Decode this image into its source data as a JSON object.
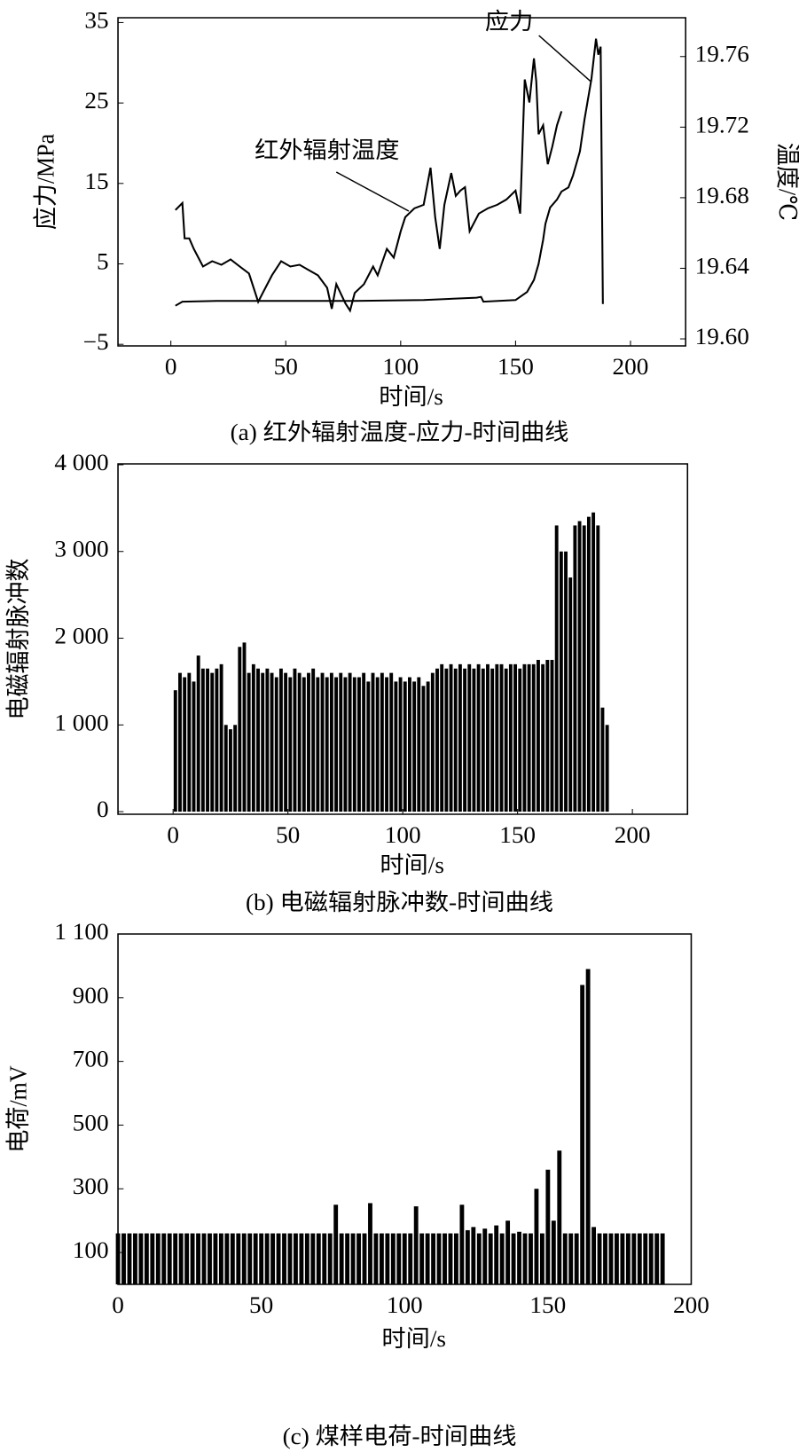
{
  "chart_data": [
    {
      "type": "line",
      "title": "(a) 红外辐射温度-应力-时间曲线",
      "xlabel": "时间/s",
      "ylabel": "应力/MPa",
      "y2label": "温度/℃",
      "xlim": [
        -23,
        224
      ],
      "xticks": [
        0,
        50,
        100,
        150,
        200
      ],
      "ylim": [
        -5.2,
        35.6
      ],
      "yticks": [
        {
          "value": -5,
          "label": "−5"
        },
        5,
        15,
        25,
        35
      ],
      "y2lim": [
        19.596,
        19.782
      ],
      "y2ticks": [
        {
          "value": 19.6,
          "label": "19.60"
        },
        {
          "value": 19.64,
          "label": "19.64"
        },
        {
          "value": 19.68,
          "label": "19.68"
        },
        {
          "value": 19.72,
          "label": "19.72"
        },
        {
          "value": 19.76,
          "label": "19.76"
        }
      ],
      "series": [
        {
          "name": "应力",
          "color": "#000000",
          "x": [
            2,
            5,
            20,
            50,
            80,
            110,
            133,
            135,
            136,
            150,
            155,
            158,
            160,
            162,
            163,
            165,
            168,
            170,
            173,
            175,
            178,
            180,
            183,
            185,
            186,
            187,
            188
          ],
          "values": [
            -0.2,
            0.3,
            0.4,
            0.4,
            0.4,
            0.5,
            0.8,
            0.9,
            0.3,
            0.5,
            1.5,
            3,
            5,
            8,
            10,
            12,
            13,
            14,
            14.5,
            16,
            19,
            23,
            28,
            33,
            31,
            32,
            0
          ]
        },
        {
          "name": "红外辐射温度",
          "color": "#000000",
          "axis": "y2",
          "x": [
            2,
            5,
            6,
            8,
            10,
            14,
            18,
            22,
            26,
            30,
            34,
            38,
            40,
            44,
            48,
            52,
            56,
            60,
            64,
            68,
            70,
            72,
            76,
            78,
            80,
            84,
            88,
            90,
            94,
            97,
            100,
            102,
            106,
            110,
            113,
            115,
            117,
            119,
            122,
            124,
            126,
            128,
            130,
            134,
            138,
            142,
            146,
            150,
            152,
            154,
            156,
            158,
            159,
            160,
            162,
            164,
            166,
            168,
            170
          ],
          "values": [
            19.673,
            19.677,
            19.657,
            19.657,
            19.651,
            19.641,
            19.644,
            19.642,
            19.645,
            19.641,
            19.637,
            19.621,
            19.626,
            19.636,
            19.644,
            19.641,
            19.642,
            19.639,
            19.636,
            19.629,
            19.617,
            19.631,
            19.62,
            19.616,
            19.626,
            19.631,
            19.641,
            19.636,
            19.651,
            19.646,
            19.661,
            19.669,
            19.674,
            19.676,
            19.697,
            19.669,
            19.651,
            19.676,
            19.694,
            19.681,
            19.684,
            19.686,
            19.661,
            19.671,
            19.674,
            19.676,
            19.679,
            19.684,
            19.671,
            19.747,
            19.734,
            19.759,
            19.746,
            19.716,
            19.721,
            19.699,
            19.709,
            19.721,
            19.729
          ]
        }
      ]
    },
    {
      "type": "bar",
      "title": "(b) 电磁辐射脉冲数-时间曲线",
      "xlabel": "时间/s",
      "ylabel": "电磁辐射脉冲数",
      "color": "#000000",
      "xlim": [
        -24,
        224
      ],
      "xticks": [
        0,
        50,
        100,
        150,
        200
      ],
      "ylim": [
        -30,
        4010
      ],
      "yticks": [
        0,
        {
          "value": 1000,
          "label": "1 000"
        },
        {
          "value": 2000,
          "label": "2 000"
        },
        {
          "value": 3000,
          "label": "3 000"
        },
        {
          "value": 4000,
          "label": "4 000"
        }
      ],
      "x": [
        1,
        3,
        5,
        7,
        9,
        11,
        13,
        15,
        17,
        19,
        21,
        23,
        25,
        27,
        29,
        31,
        33,
        35,
        37,
        39,
        41,
        43,
        45,
        47,
        49,
        51,
        53,
        55,
        57,
        59,
        61,
        63,
        65,
        67,
        69,
        71,
        73,
        75,
        77,
        79,
        81,
        83,
        85,
        87,
        89,
        91,
        93,
        95,
        97,
        99,
        101,
        103,
        105,
        107,
        109,
        111,
        113,
        115,
        117,
        119,
        121,
        123,
        125,
        127,
        129,
        131,
        133,
        135,
        137,
        139,
        141,
        143,
        145,
        147,
        149,
        151,
        153,
        155,
        157,
        159,
        161,
        163,
        165,
        167,
        169,
        171,
        173,
        175,
        177,
        179,
        181,
        183,
        185,
        187,
        189
      ],
      "values": [
        1400,
        1600,
        1550,
        1600,
        1500,
        1800,
        1650,
        1650,
        1600,
        1650,
        1700,
        1000,
        950,
        1000,
        1900,
        1950,
        1600,
        1700,
        1650,
        1600,
        1650,
        1600,
        1550,
        1650,
        1600,
        1550,
        1650,
        1600,
        1550,
        1600,
        1650,
        1550,
        1600,
        1550,
        1600,
        1550,
        1600,
        1550,
        1600,
        1550,
        1550,
        1600,
        1500,
        1600,
        1550,
        1600,
        1550,
        1600,
        1500,
        1550,
        1500,
        1550,
        1500,
        1550,
        1450,
        1500,
        1600,
        1650,
        1700,
        1650,
        1700,
        1650,
        1700,
        1650,
        1700,
        1650,
        1700,
        1650,
        1700,
        1650,
        1700,
        1700,
        1650,
        1700,
        1700,
        1650,
        1700,
        1700,
        1700,
        1750,
        1700,
        1750,
        1750,
        3300,
        3000,
        3000,
        2700,
        3300,
        3350,
        3300,
        3400,
        3450,
        3300,
        1200,
        1000
      ]
    },
    {
      "type": "bar",
      "title": "(c) 煤样电荷-时间曲线",
      "xlabel": "时间/s",
      "ylabel": "电荷/mV",
      "color": "#000000",
      "xlim": [
        0,
        200
      ],
      "xticks": [
        0,
        50,
        100,
        150,
        200
      ],
      "ylim": [
        0,
        1100
      ],
      "yticks": [
        100,
        300,
        500,
        700,
        900,
        {
          "value": 1100,
          "label": "1 100"
        }
      ],
      "x": [
        0,
        2,
        4,
        6,
        8,
        10,
        12,
        14,
        16,
        18,
        20,
        22,
        24,
        26,
        28,
        30,
        32,
        34,
        36,
        38,
        40,
        42,
        44,
        46,
        48,
        50,
        52,
        54,
        56,
        58,
        60,
        62,
        64,
        66,
        68,
        70,
        72,
        74,
        76,
        78,
        80,
        82,
        84,
        86,
        88,
        90,
        92,
        94,
        96,
        98,
        100,
        102,
        104,
        106,
        108,
        110,
        112,
        114,
        116,
        118,
        120,
        122,
        124,
        126,
        128,
        130,
        132,
        134,
        136,
        138,
        140,
        142,
        144,
        146,
        148,
        150,
        152,
        154,
        156,
        158,
        160,
        162,
        164,
        166,
        168,
        170,
        172,
        174,
        176,
        178,
        180,
        182,
        184,
        186,
        188,
        190
      ],
      "values": [
        160,
        160,
        160,
        160,
        160,
        160,
        160,
        160,
        160,
        160,
        160,
        160,
        160,
        160,
        160,
        160,
        160,
        160,
        160,
        160,
        160,
        160,
        160,
        160,
        160,
        160,
        160,
        160,
        160,
        160,
        160,
        160,
        160,
        160,
        160,
        160,
        160,
        160,
        250,
        160,
        160,
        160,
        160,
        160,
        255,
        160,
        160,
        160,
        160,
        160,
        160,
        160,
        245,
        160,
        160,
        160,
        160,
        160,
        160,
        160,
        250,
        170,
        180,
        160,
        175,
        160,
        185,
        160,
        200,
        160,
        165,
        160,
        160,
        300,
        160,
        360,
        200,
        420,
        160,
        160,
        160,
        940,
        990,
        180,
        160,
        160,
        160,
        160,
        160,
        160,
        160,
        160,
        160,
        160,
        160,
        160
      ]
    }
  ]
}
